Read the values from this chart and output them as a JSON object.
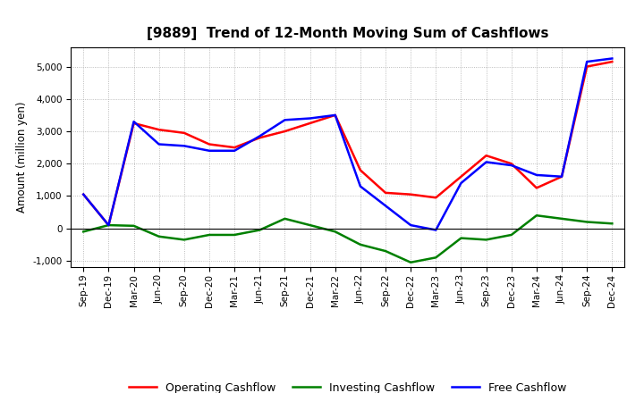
{
  "title": "[9889]  Trend of 12-Month Moving Sum of Cashflows",
  "ylabel": "Amount (million yen)",
  "xlabels": [
    "Sep-19",
    "Dec-19",
    "Mar-20",
    "Jun-20",
    "Sep-20",
    "Dec-20",
    "Mar-21",
    "Jun-21",
    "Sep-21",
    "Dec-21",
    "Mar-22",
    "Jun-22",
    "Sep-22",
    "Dec-22",
    "Mar-23",
    "Jun-23",
    "Sep-23",
    "Dec-23",
    "Mar-24",
    "Jun-24",
    "Sep-24",
    "Dec-24"
  ],
  "operating_cashflow": [
    1050,
    100,
    3250,
    3050,
    2950,
    2600,
    2500,
    2800,
    3000,
    3250,
    3500,
    1800,
    1100,
    1050,
    950,
    1600,
    2250,
    2000,
    1250,
    1600,
    5000,
    5150
  ],
  "investing_cashflow": [
    -100,
    100,
    80,
    -250,
    -350,
    -200,
    -200,
    -50,
    300,
    100,
    -100,
    -500,
    -700,
    -1050,
    -900,
    -300,
    -350,
    -200,
    400,
    300,
    200,
    150
  ],
  "free_cashflow": [
    1050,
    100,
    3300,
    2600,
    2550,
    2400,
    2400,
    2850,
    3350,
    3400,
    3500,
    1300,
    700,
    100,
    -50,
    1400,
    2050,
    1950,
    1650,
    1600,
    5150,
    5250
  ],
  "operating_color": "#ff0000",
  "investing_color": "#008000",
  "free_color": "#0000ff",
  "ylim": [
    -1200,
    5600
  ],
  "yticks": [
    -1000,
    0,
    1000,
    2000,
    3000,
    4000,
    5000
  ],
  "background_color": "#ffffff",
  "grid_color": "#aaaaaa",
  "line_width": 1.8
}
